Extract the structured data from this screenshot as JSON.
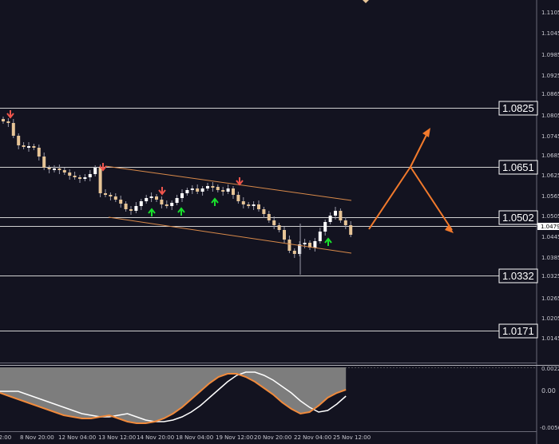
{
  "price_axis": {
    "ticks": [
      "1.1105",
      "1.1045",
      "1.0985",
      "1.0925",
      "1.0865",
      "1.0805",
      "1.0745",
      "1.0685",
      "1.0625",
      "1.0565",
      "1.0505",
      "1.0445",
      "1.0385",
      "1.0325",
      "1.0265",
      "1.0205",
      "1.0145"
    ]
  },
  "levels": [
    "1.0825",
    "1.0651",
    "1.0502",
    "1.0332",
    "1.0171"
  ],
  "current_price": "1.0479",
  "indicator_axis": {
    "ticks": [
      "0.0022",
      "0.00",
      "-0.0056"
    ]
  },
  "time_axis": {
    "labels": [
      "8 Nov 20:00",
      "12 Nov 04:00",
      "13 Nov 12:00",
      "14 Nov 20:00",
      "18 Nov 04:00",
      "19 Nov 12:00",
      "20 Nov 20:00",
      "22 Nov 04:00",
      "25 Nov 12:00"
    ]
  },
  "colors": {
    "background": "#131320",
    "bull_candle": "#ffffff",
    "bear_candle": "#e6c496",
    "level_line": "#cfcfcf",
    "channel": "#d98a4a",
    "forecast_arrow": "#f27a2c",
    "buy_signal": "#19e02c",
    "sell_signal": "#f0554c",
    "histogram": "#7d7d7d",
    "signal_line": "#ffffff",
    "fast_line": "#f08a3c"
  }
}
